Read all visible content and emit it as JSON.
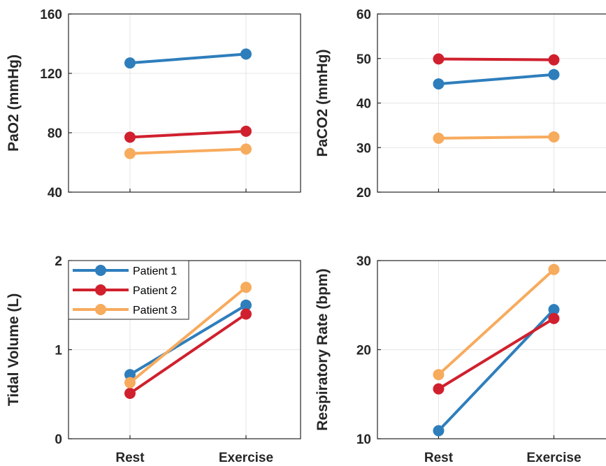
{
  "colors": {
    "Patient 1": "#2e7ebc",
    "Patient 2": "#d0202e",
    "Patient 3": "#f7ab5d",
    "axis": "#262626",
    "grid": "#e5e5e5"
  },
  "chart_data": [
    {
      "type": "line",
      "ylabel": "PaO2 (mmHg)",
      "categories": [
        "Rest",
        "Exercise"
      ],
      "show_xticklabels": false,
      "ylim": [
        40,
        160
      ],
      "yticks": [
        40,
        80,
        120,
        160
      ],
      "grid": true,
      "legend": "none",
      "series": [
        {
          "name": "Patient 1",
          "values": [
            127,
            133
          ]
        },
        {
          "name": "Patient 2",
          "values": [
            77,
            81
          ]
        },
        {
          "name": "Patient 3",
          "values": [
            66,
            69
          ]
        }
      ]
    },
    {
      "type": "line",
      "ylabel": "PaCO2 (mmHg)",
      "categories": [
        "Rest",
        "Exercise"
      ],
      "show_xticklabels": false,
      "ylim": [
        20,
        60
      ],
      "yticks": [
        20,
        30,
        40,
        50,
        60
      ],
      "grid": true,
      "legend": "none",
      "series": [
        {
          "name": "Patient 1",
          "values": [
            44.3,
            46.4
          ]
        },
        {
          "name": "Patient 2",
          "values": [
            49.9,
            49.7
          ]
        },
        {
          "name": "Patient 3",
          "values": [
            32.1,
            32.4
          ]
        }
      ]
    },
    {
      "type": "line",
      "ylabel": "Tidal Volume (L)",
      "categories": [
        "Rest",
        "Exercise"
      ],
      "show_xticklabels": true,
      "ylim": [
        0,
        2
      ],
      "yticks": [
        0,
        1,
        2
      ],
      "grid": true,
      "legend": "top-left",
      "series": [
        {
          "name": "Patient 1",
          "values": [
            0.72,
            1.5
          ]
        },
        {
          "name": "Patient 2",
          "values": [
            0.51,
            1.4
          ]
        },
        {
          "name": "Patient 3",
          "values": [
            0.63,
            1.7
          ]
        }
      ]
    },
    {
      "type": "line",
      "ylabel": "Respiratory Rate (bpm)",
      "categories": [
        "Rest",
        "Exercise"
      ],
      "show_xticklabels": true,
      "ylim": [
        10,
        30
      ],
      "yticks": [
        10,
        20,
        30
      ],
      "grid": true,
      "legend": "none",
      "series": [
        {
          "name": "Patient 1",
          "values": [
            10.9,
            24.5
          ]
        },
        {
          "name": "Patient 2",
          "values": [
            15.6,
            23.5
          ]
        },
        {
          "name": "Patient 3",
          "values": [
            17.2,
            29.0
          ]
        }
      ]
    }
  ]
}
